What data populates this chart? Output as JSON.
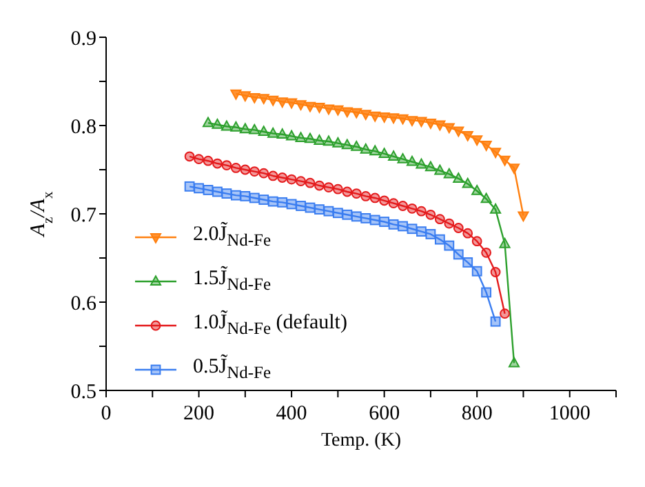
{
  "chart_data": {
    "type": "line",
    "xlabel": "Temp. (K)",
    "ylabel": "A$_{z}$/A$_{x}$",
    "xlim": [
      0,
      1100
    ],
    "xticks": [
      0,
      {
        "value": 100,
        "label": null
      },
      200,
      {
        "value": 300,
        "label": null
      },
      400,
      {
        "value": 500,
        "label": null
      },
      600,
      {
        "value": 700,
        "label": null
      },
      800,
      {
        "value": 900,
        "label": null
      },
      1000,
      {
        "value": 1100,
        "label": null
      }
    ],
    "ylim": [
      0.5,
      0.9
    ],
    "yticks": [
      0.5,
      {
        "value": 0.55,
        "label": null
      },
      0.6,
      {
        "value": 0.65,
        "label": null
      },
      0.7,
      {
        "value": 0.75,
        "label": null
      },
      0.8,
      {
        "value": 0.85,
        "label": null
      },
      0.9
    ],
    "grid": false,
    "legend": "left",
    "line_style": "solid",
    "series": [
      {
        "name": "2.0J̃$_{Nd-Fe}$",
        "color": "#ff7f0e",
        "marker": "triangle-down",
        "x": [
          280,
          300,
          320,
          340,
          360,
          380,
          400,
          420,
          440,
          460,
          480,
          500,
          520,
          540,
          560,
          580,
          600,
          620,
          640,
          660,
          680,
          700,
          720,
          740,
          760,
          780,
          800,
          820,
          840,
          860,
          880,
          900
        ],
        "values": [
          0.836,
          0.834,
          0.832,
          0.831,
          0.829,
          0.827,
          0.826,
          0.824,
          0.822,
          0.821,
          0.819,
          0.818,
          0.816,
          0.815,
          0.813,
          0.811,
          0.81,
          0.809,
          0.808,
          0.806,
          0.805,
          0.803,
          0.801,
          0.798,
          0.794,
          0.789,
          0.784,
          0.778,
          0.77,
          0.761,
          0.752,
          0.698
        ]
      },
      {
        "name": "1.5J̃$_{Nd-Fe}$",
        "color": "#2ca02c",
        "marker": "triangle",
        "x": [
          220,
          240,
          260,
          280,
          300,
          320,
          340,
          360,
          380,
          400,
          420,
          440,
          460,
          480,
          500,
          520,
          540,
          560,
          580,
          600,
          620,
          640,
          660,
          680,
          700,
          720,
          740,
          760,
          780,
          800,
          820,
          840,
          860,
          880
        ],
        "values": [
          0.803,
          0.801,
          0.799,
          0.798,
          0.796,
          0.795,
          0.793,
          0.791,
          0.79,
          0.788,
          0.786,
          0.785,
          0.783,
          0.782,
          0.78,
          0.778,
          0.776,
          0.773,
          0.771,
          0.768,
          0.765,
          0.762,
          0.759,
          0.756,
          0.753,
          0.749,
          0.745,
          0.74,
          0.734,
          0.726,
          0.717,
          0.705,
          0.666,
          0.531
        ]
      },
      {
        "name": "1.0J̃$_{Nd-Fe}$ (default)",
        "color": "#e41a1c",
        "marker": "circle",
        "x": [
          180,
          200,
          220,
          240,
          260,
          280,
          300,
          320,
          340,
          360,
          380,
          400,
          420,
          440,
          460,
          480,
          500,
          520,
          540,
          560,
          580,
          600,
          620,
          640,
          660,
          680,
          700,
          720,
          740,
          760,
          780,
          800,
          820,
          840,
          860
        ],
        "values": [
          0.765,
          0.762,
          0.76,
          0.757,
          0.755,
          0.752,
          0.75,
          0.748,
          0.746,
          0.743,
          0.741,
          0.739,
          0.737,
          0.735,
          0.732,
          0.73,
          0.728,
          0.725,
          0.723,
          0.72,
          0.718,
          0.715,
          0.712,
          0.709,
          0.706,
          0.703,
          0.699,
          0.694,
          0.689,
          0.684,
          0.678,
          0.669,
          0.656,
          0.634,
          0.587
        ]
      },
      {
        "name": "0.5J̃$_{Nd-Fe}$",
        "color": "#3a7df0",
        "marker": "square",
        "x": [
          180,
          200,
          220,
          240,
          260,
          280,
          300,
          320,
          340,
          360,
          380,
          400,
          420,
          440,
          460,
          480,
          500,
          520,
          540,
          560,
          580,
          600,
          620,
          640,
          660,
          680,
          700,
          720,
          740,
          760,
          780,
          800,
          820,
          840
        ],
        "values": [
          0.731,
          0.729,
          0.727,
          0.725,
          0.723,
          0.721,
          0.72,
          0.718,
          0.716,
          0.714,
          0.713,
          0.711,
          0.709,
          0.707,
          0.705,
          0.703,
          0.701,
          0.699,
          0.697,
          0.695,
          0.693,
          0.691,
          0.688,
          0.686,
          0.683,
          0.68,
          0.677,
          0.671,
          0.664,
          0.654,
          0.645,
          0.635,
          0.611,
          0.578
        ]
      }
    ]
  }
}
